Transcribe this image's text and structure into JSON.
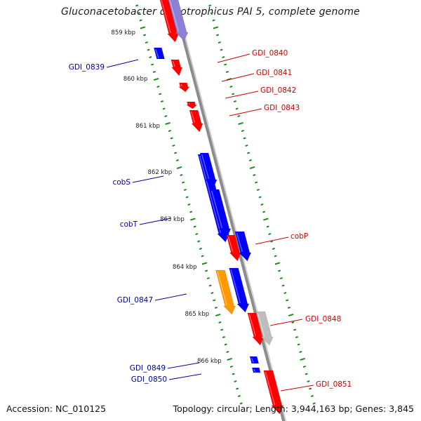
{
  "title": "Gluconacetobacter diazotrophicus PAI 5, complete genome",
  "accession": "Accession: NC_010125",
  "topology": "Topology: circular; Length: 3,944,163 bp; Genes: 3,845",
  "colors": {
    "backbone": "#8c8c8c",
    "tick": "#1a8a1a",
    "forward_gene": "#ff0000",
    "reverse_gene": "#0000ff",
    "forward_label": "#cc0000",
    "reverse_label": "#0000aa",
    "purple_gene": "#8b7fd6",
    "orange_gene": "#ff9900",
    "gray_gene": "#bdbdbd"
  },
  "kbp_ticks": [
    "859 kbp",
    "860 kbp",
    "861 kbp",
    "862 kbp",
    "863 kbp",
    "864 kbp",
    "865 kbp",
    "866 kbp"
  ],
  "left_labels": [
    "GDI_0839",
    "cobS",
    "cobT",
    "GDI_0847",
    "GDI_0849",
    "GDI_0850"
  ],
  "right_labels": [
    "GDI_0840",
    "GDI_0841",
    "GDI_0842",
    "GDI_0843",
    "cobP",
    "GDI_0848",
    "GDI_0851"
  ]
}
